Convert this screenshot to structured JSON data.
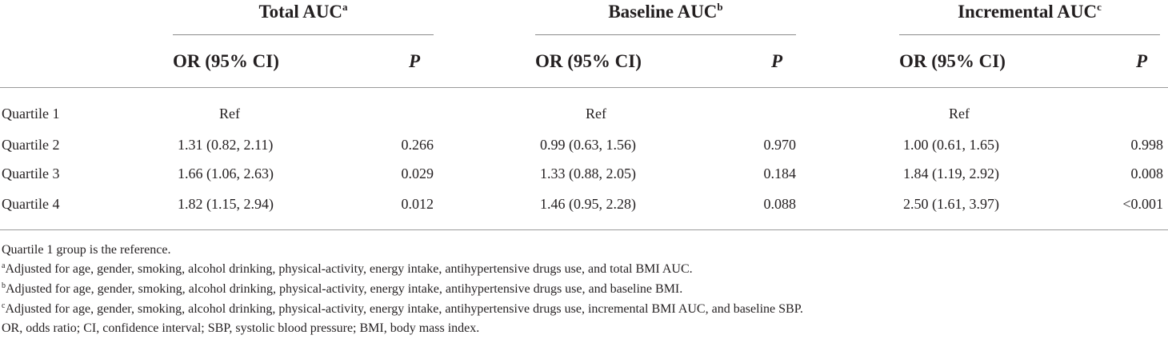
{
  "table": {
    "groups": [
      {
        "title": "Total AUC",
        "sup": "a",
        "or_header": "OR (95% CI)",
        "p_header": "P"
      },
      {
        "title": "Baseline AUC",
        "sup": "b",
        "or_header": "OR (95% CI)",
        "p_header": "P"
      },
      {
        "title": "Incremental AUC",
        "sup": "c",
        "or_header": "OR (95% CI)",
        "p_header": "P"
      }
    ],
    "rows": [
      {
        "label": "Quartile 1",
        "cells": [
          {
            "or": "Ref",
            "p": ""
          },
          {
            "or": "Ref",
            "p": ""
          },
          {
            "or": "Ref",
            "p": ""
          }
        ]
      },
      {
        "label": "Quartile 2",
        "cells": [
          {
            "or": "1.31 (0.82, 2.11)",
            "p": "0.266"
          },
          {
            "or": "0.99 (0.63, 1.56)",
            "p": "0.970"
          },
          {
            "or": "1.00 (0.61, 1.65)",
            "p": "0.998"
          }
        ]
      },
      {
        "label": "Quartile 3",
        "cells": [
          {
            "or": "1.66 (1.06, 2.63)",
            "p": "0.029"
          },
          {
            "or": "1.33 (0.88, 2.05)",
            "p": "0.184"
          },
          {
            "or": "1.84 (1.19, 2.92)",
            "p": "0.008"
          }
        ]
      },
      {
        "label": "Quartile 4",
        "cells": [
          {
            "or": "1.82 (1.15, 2.94)",
            "p": "0.012"
          },
          {
            "or": "1.46 (0.95, 2.28)",
            "p": "0.088"
          },
          {
            "or": "2.50 (1.61, 3.97)",
            "p": "<0.001"
          }
        ]
      }
    ]
  },
  "footnotes": {
    "ref": "Quartile 1 group is the reference.",
    "a": {
      "mark": "a",
      "text": "Adjusted for age, gender, smoking, alcohol drinking, physical-activity, energy intake, antihypertensive drugs use, and total BMI AUC."
    },
    "b": {
      "mark": "b",
      "text": "Adjusted for age, gender, smoking, alcohol drinking, physical-activity, energy intake, antihypertensive drugs use, and baseline BMI."
    },
    "c": {
      "mark": "c",
      "text": "Adjusted for age, gender, smoking, alcohol drinking, physical-activity, energy intake, antihypertensive drugs use, incremental BMI AUC, and baseline SBP."
    },
    "abbrev": "OR, odds ratio; CI, confidence interval; SBP, systolic blood pressure; BMI, body mass index."
  }
}
